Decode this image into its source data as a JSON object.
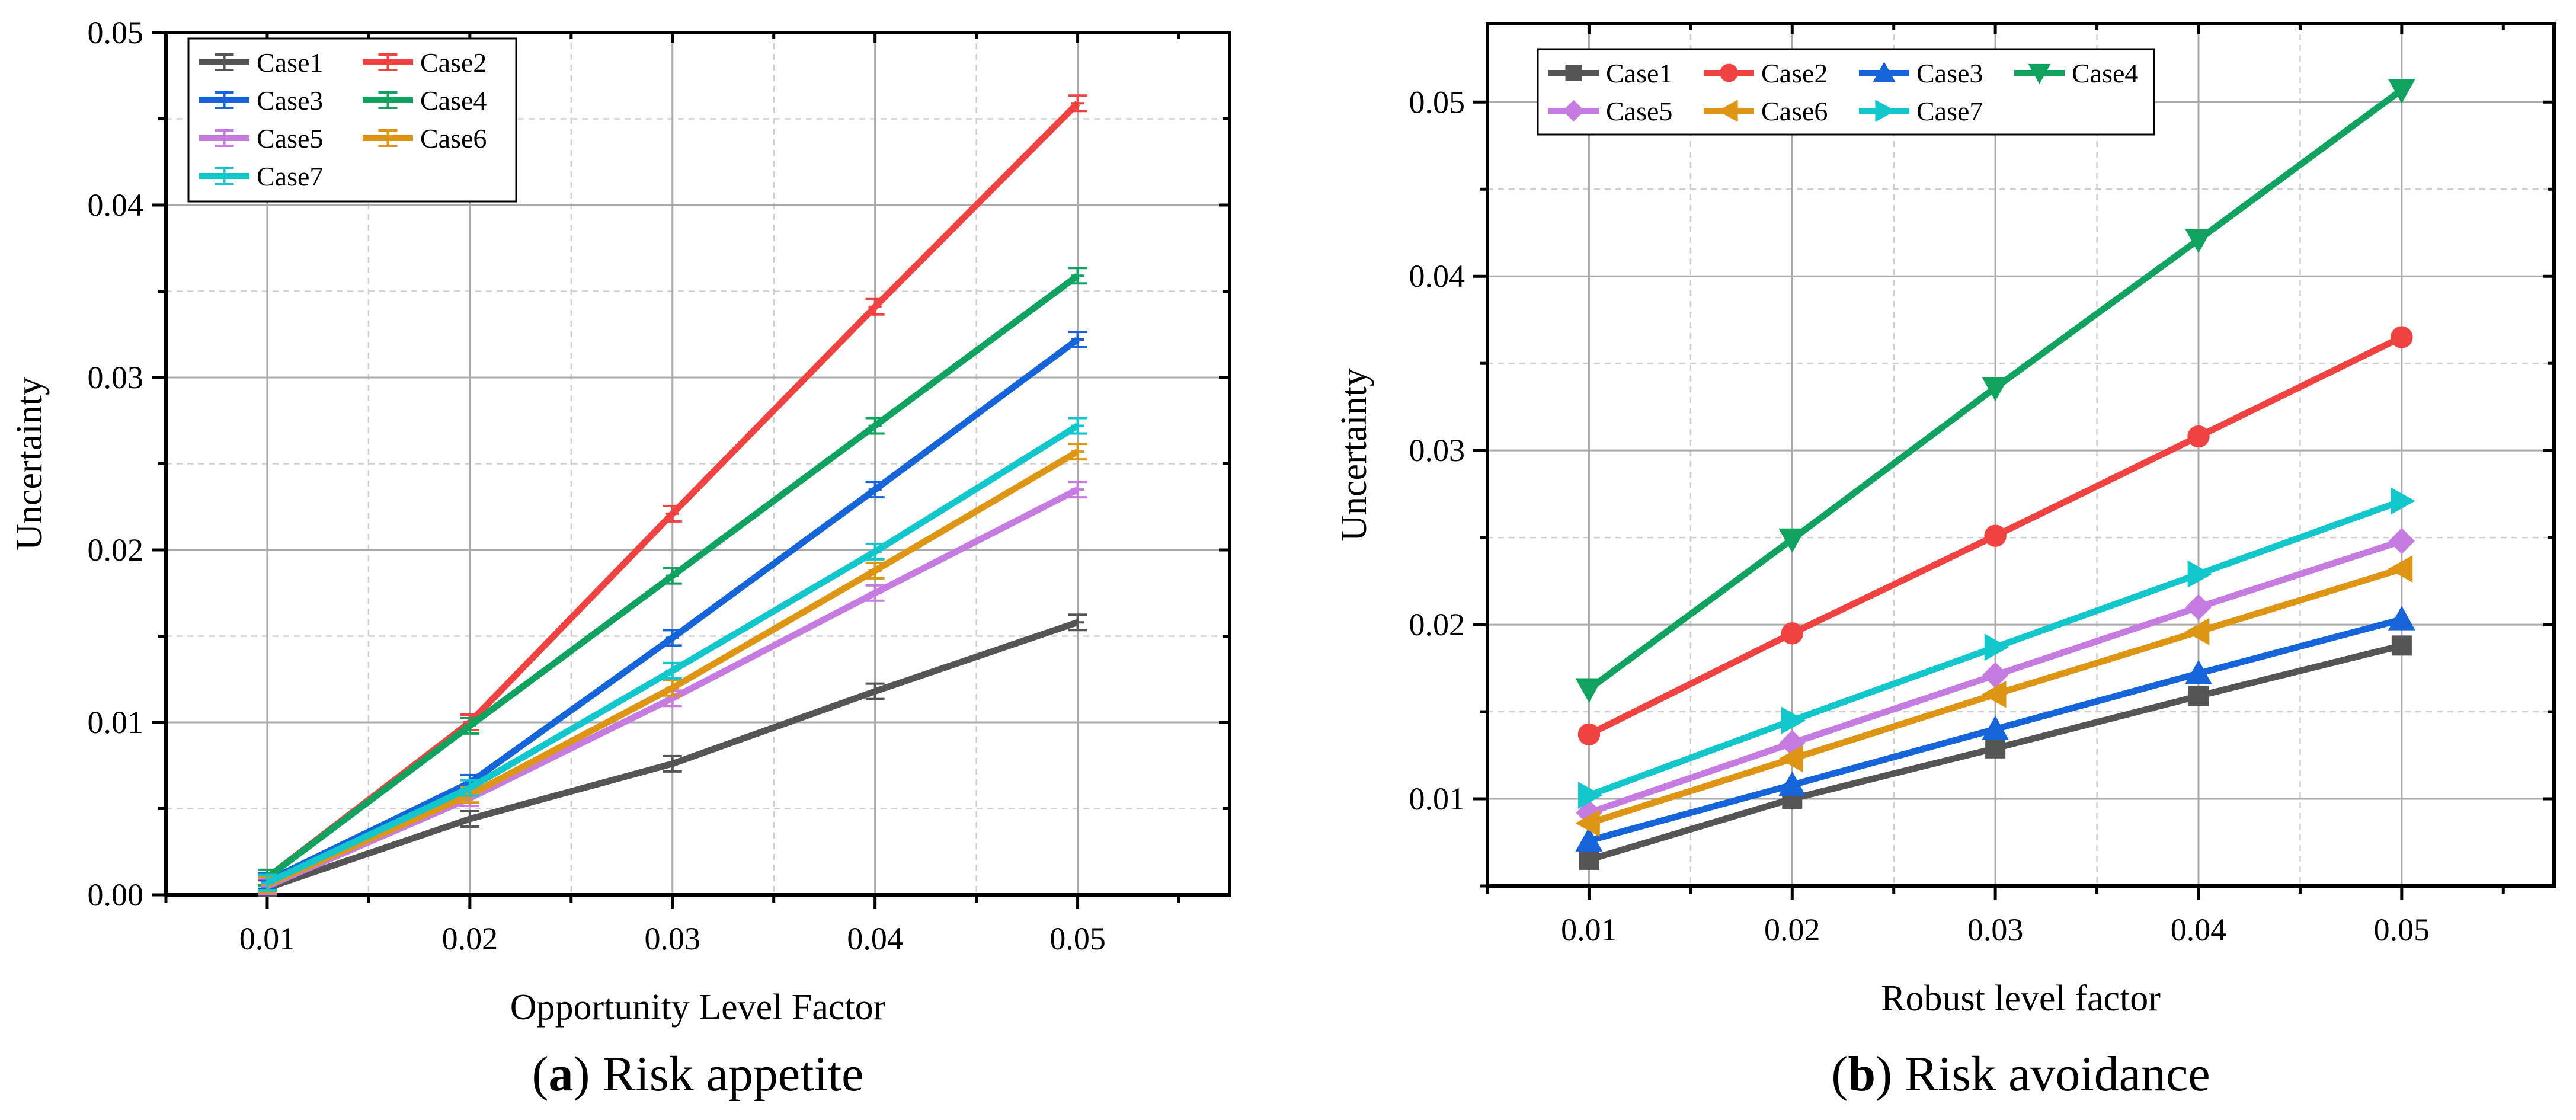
{
  "colors": {
    "Case1": "#555555",
    "Case2": "#f14242",
    "Case3": "#1664d9",
    "Case4": "#10a35f",
    "Case5": "#c57be0",
    "Case6": "#dd9513",
    "Case7": "#12c7cc"
  },
  "chart_data": [
    {
      "type": "line",
      "panel": "a",
      "caption": {
        "letter": "a",
        "open": "(",
        "close": ")",
        "text": "Risk appetite"
      },
      "xlabel": "Opportunity Level Factor",
      "ylabel": "Uncertainty",
      "x": [
        0.01,
        0.02,
        0.03,
        0.04,
        0.05
      ],
      "x_tick_labels": [
        "0.01",
        "0.02",
        "0.03",
        "0.04",
        "0.05"
      ],
      "xlim": [
        0.005,
        0.0575
      ],
      "ylim": [
        0.0,
        0.05
      ],
      "y_ticks": [
        0.0,
        0.01,
        0.02,
        0.03,
        0.04,
        0.05
      ],
      "y_tick_labels": [
        "0.00",
        "0.01",
        "0.02",
        "0.03",
        "0.04",
        "0.05"
      ],
      "grid": true,
      "markers": "error-bars",
      "legend_position": "top-left",
      "legend_columns": 2,
      "series": [
        {
          "name": "Case1",
          "values": [
            0.0004,
            0.0044,
            0.0076,
            0.0118,
            0.0158
          ]
        },
        {
          "name": "Case2",
          "values": [
            0.001,
            0.01,
            0.0221,
            0.0341,
            0.0459
          ]
        },
        {
          "name": "Case3",
          "values": [
            0.0008,
            0.0065,
            0.0149,
            0.0235,
            0.0322
          ]
        },
        {
          "name": "Case4",
          "values": [
            0.001,
            0.0098,
            0.0185,
            0.0272,
            0.0359
          ]
        },
        {
          "name": "Case5",
          "values": [
            0.0005,
            0.0056,
            0.0114,
            0.0175,
            0.0235
          ]
        },
        {
          "name": "Case6",
          "values": [
            0.0006,
            0.0058,
            0.012,
            0.0188,
            0.0257
          ]
        },
        {
          "name": "Case7",
          "values": [
            0.0007,
            0.0062,
            0.013,
            0.0199,
            0.0272
          ]
        }
      ]
    },
    {
      "type": "line",
      "panel": "b",
      "caption": {
        "letter": "b",
        "open": "(",
        "close": ")",
        "text": "Risk avoidance"
      },
      "xlabel": "Robust level factor",
      "ylabel": "Uncertainty",
      "x": [
        0.01,
        0.02,
        0.03,
        0.04,
        0.05
      ],
      "x_tick_labels": [
        "0.01",
        "0.02",
        "0.03",
        "0.04",
        "0.05"
      ],
      "xlim": [
        0.005,
        0.0575
      ],
      "ylim": [
        0.005,
        0.0545
      ],
      "y_ticks": [
        0.01,
        0.02,
        0.03,
        0.04,
        0.05
      ],
      "y_tick_labels": [
        "0.01",
        "0.02",
        "0.03",
        "0.04",
        "0.05"
      ],
      "grid": true,
      "markers": "shapes",
      "legend_position": "top-left",
      "legend_columns": 4,
      "series": [
        {
          "name": "Case1",
          "marker": "square",
          "values": [
            0.0065,
            0.01,
            0.0129,
            0.0159,
            0.0188
          ]
        },
        {
          "name": "Case2",
          "marker": "circle",
          "values": [
            0.0137,
            0.0195,
            0.0251,
            0.0308,
            0.0365
          ]
        },
        {
          "name": "Case3",
          "marker": "triangle-up",
          "values": [
            0.0076,
            0.0108,
            0.014,
            0.0172,
            0.0203
          ]
        },
        {
          "name": "Case4",
          "marker": "triangle-down",
          "values": [
            0.0163,
            0.0249,
            0.0336,
            0.0421,
            0.0507
          ]
        },
        {
          "name": "Case5",
          "marker": "diamond",
          "values": [
            0.0092,
            0.0132,
            0.0171,
            0.021,
            0.0248
          ]
        },
        {
          "name": "Case6",
          "marker": "triangle-left",
          "values": [
            0.0086,
            0.0123,
            0.016,
            0.0196,
            0.0232
          ]
        },
        {
          "name": "Case7",
          "marker": "triangle-right",
          "values": [
            0.0102,
            0.0145,
            0.0187,
            0.0229,
            0.0271
          ]
        }
      ]
    }
  ]
}
